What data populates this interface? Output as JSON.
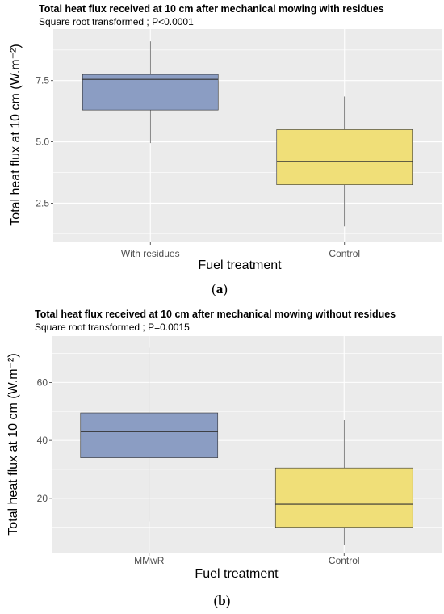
{
  "chart_data": [
    {
      "type": "box",
      "title": "Total heat flux received at 10 cm after mechanical mowing with residues",
      "subtitle": "Square root transformed ; P<0.0001",
      "xlabel": "Fuel treatment",
      "ylabel": "Total heat flux at 10 cm (W.m⁻²)",
      "panel_label": "a",
      "ylim": [
        0.9,
        9.6
      ],
      "yticks": [
        2.5,
        5.0,
        7.5
      ],
      "ytick_labels": [
        "2.5",
        "5.0",
        "7.5"
      ],
      "grid": true,
      "categories": [
        "With residues",
        "Control"
      ],
      "boxes": [
        {
          "category": "With residues",
          "min": 4.95,
          "q1": 6.3,
          "median": 7.55,
          "q3": 7.75,
          "max": 9.1,
          "color": "#8b9dc3"
        },
        {
          "category": "Control",
          "min": 1.55,
          "q1": 3.25,
          "median": 4.2,
          "q3": 5.5,
          "max": 6.85,
          "color": "#f0df78"
        }
      ]
    },
    {
      "type": "box",
      "title": "Total heat flux received at 10 cm after mechanical mowing without residues",
      "subtitle": "Square root transformed ; P=0.0015",
      "xlabel": "Fuel treatment",
      "ylabel": "Total heat flux at 10 cm (W.m⁻²)",
      "panel_label": "b",
      "ylim": [
        1,
        76
      ],
      "yticks": [
        20,
        40,
        60
      ],
      "ytick_labels": [
        "20",
        "40",
        "60"
      ],
      "grid": true,
      "categories": [
        "MMwR",
        "Control"
      ],
      "boxes": [
        {
          "category": "MMwR",
          "min": 12,
          "q1": 34,
          "median": 43,
          "q3": 49.5,
          "max": 72,
          "color": "#8b9dc3"
        },
        {
          "category": "Control",
          "min": 4,
          "q1": 10,
          "median": 18,
          "q3": 30.5,
          "max": 47,
          "color": "#f0df78"
        }
      ]
    }
  ],
  "colors": {
    "panel_bg": "#ebebeb",
    "grid": "#ffffff",
    "box_stroke": "#333333"
  }
}
